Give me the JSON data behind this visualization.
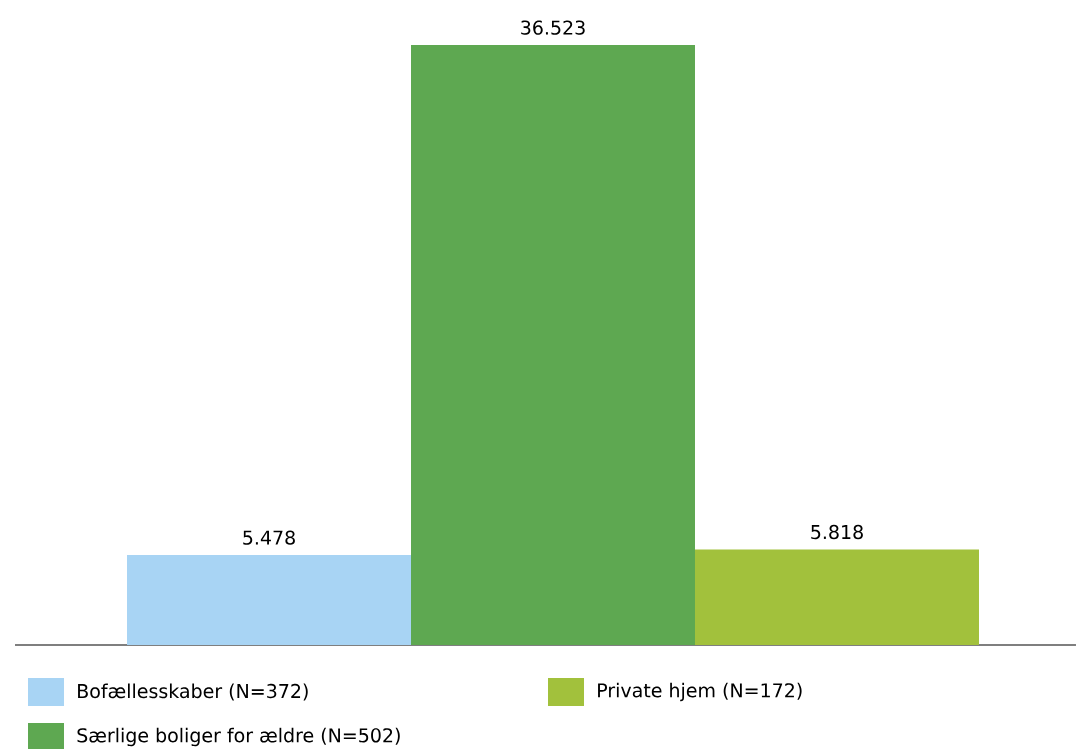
{
  "chart_data": {
    "type": "bar",
    "categories": [
      null
    ],
    "series": [
      {
        "name": "Bofællesskaber (N=372)",
        "color": "#a8d4f4",
        "values": [
          5478
        ],
        "value_labels": [
          "5.478"
        ]
      },
      {
        "name": "Særlige boliger for ældre (N=502)",
        "color": "#5ea851",
        "values": [
          36523
        ],
        "value_labels": [
          "36.523"
        ]
      },
      {
        "name": "Private hjem (N=172)",
        "color": "#a2c13c",
        "values": [
          5818
        ],
        "value_labels": [
          "5.818"
        ]
      }
    ],
    "legend": "bottom"
  }
}
